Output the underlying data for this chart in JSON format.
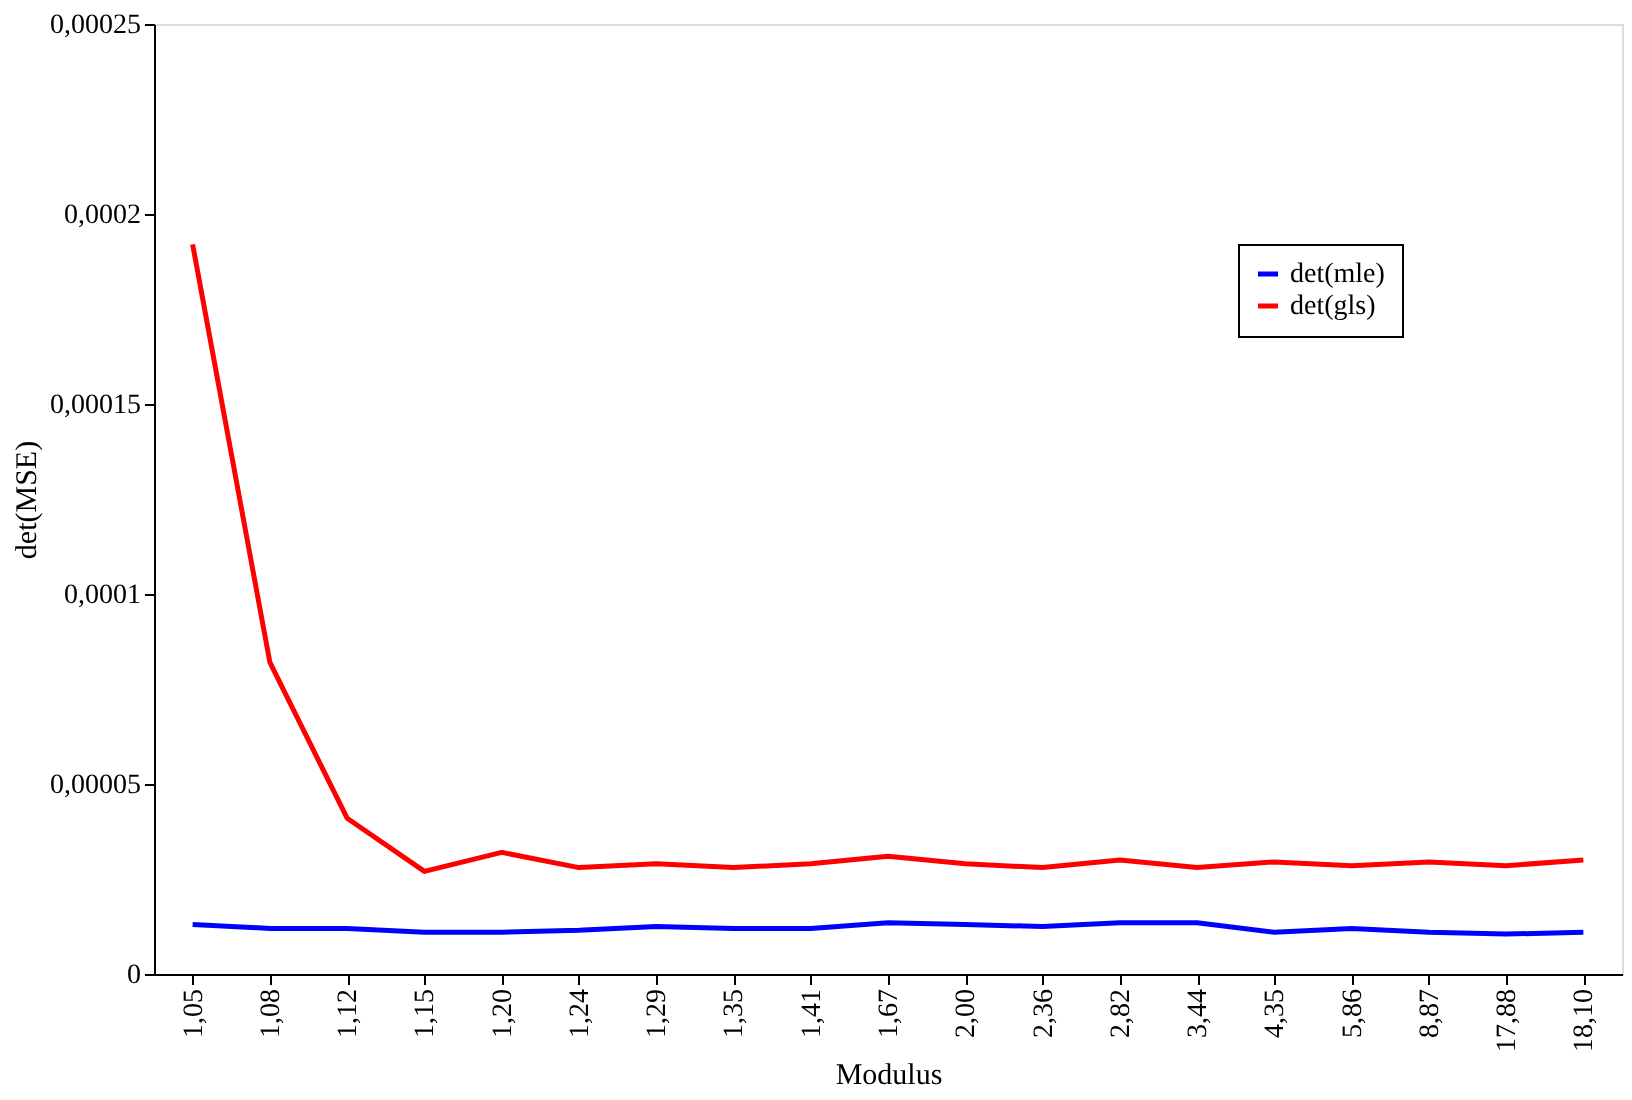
{
  "chart_data": {
    "type": "line",
    "xlabel": "Modulus",
    "ylabel": "det(MSE)",
    "categories": [
      "1,05",
      "1,08",
      "1,12",
      "1,15",
      "1,20",
      "1,24",
      "1,29",
      "1,35",
      "1,41",
      "1,67",
      "2,00",
      "2,36",
      "2,82",
      "3,44",
      "4,35",
      "5,86",
      "8,87",
      "17,88",
      "18,10"
    ],
    "series": [
      {
        "name": "det(mle)",
        "color": "#0000ff",
        "values": [
          1.3e-05,
          1.2e-05,
          1.2e-05,
          1.1e-05,
          1.1e-05,
          1.15e-05,
          1.25e-05,
          1.2e-05,
          1.2e-05,
          1.35e-05,
          1.3e-05,
          1.25e-05,
          1.35e-05,
          1.35e-05,
          1.1e-05,
          1.2e-05,
          1.1e-05,
          1.05e-05,
          1.1e-05
        ]
      },
      {
        "name": "det(gls)",
        "color": "#ff0000",
        "values": [
          0.000192,
          8.2e-05,
          4.1e-05,
          2.7e-05,
          3.2e-05,
          2.8e-05,
          2.9e-05,
          2.8e-05,
          2.9e-05,
          3.1e-05,
          2.9e-05,
          2.8e-05,
          3e-05,
          2.8e-05,
          2.95e-05,
          2.85e-05,
          2.95e-05,
          2.85e-05,
          3e-05
        ]
      }
    ],
    "ylim": [
      0,
      0.00025
    ],
    "yticks": [
      {
        "value": 0,
        "label": "0"
      },
      {
        "value": 5e-05,
        "label": "0,00005"
      },
      {
        "value": 0.0001,
        "label": "0,0001"
      },
      {
        "value": 0.00015,
        "label": "0,00015"
      },
      {
        "value": 0.0002,
        "label": "0,0002"
      },
      {
        "value": 0.00025,
        "label": "0,00025"
      }
    ],
    "grid": false,
    "legend": "top right",
    "marker": "none",
    "line_style": "solid"
  }
}
